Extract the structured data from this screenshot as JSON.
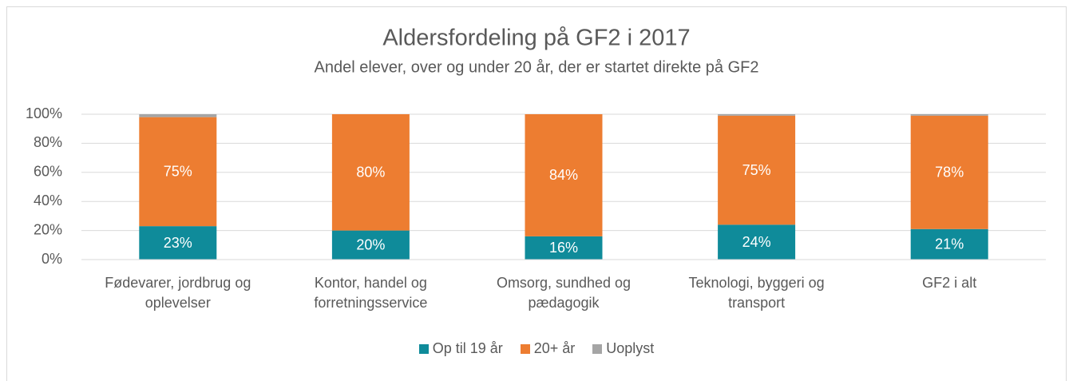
{
  "chart_data": {
    "type": "stacked_bar",
    "title": "Aldersfordeling på GF2 i 2017",
    "subtitle": "Andel elever, over og under 20 år, der er startet direkte på GF2",
    "categories": [
      "Fødevarer, jordbrug og oplevelser",
      "Kontor, handel og forretningsservice",
      "Omsorg, sundhed og pædagogik",
      "Teknologi, byggeri og transport",
      "GF2 i alt"
    ],
    "series": [
      {
        "name": "Op til 19 år",
        "color": "#0f8b9a",
        "values": [
          23,
          20,
          16,
          24,
          21
        ],
        "value_labels": [
          "23%",
          "20%",
          "16%",
          "24%",
          "21%"
        ]
      },
      {
        "name": "20+ år",
        "color": "#ed7d31",
        "values": [
          75,
          80,
          84,
          75,
          78
        ],
        "value_labels": [
          "75%",
          "80%",
          "84%",
          "75%",
          "78%"
        ]
      },
      {
        "name": "Uoplyst",
        "color": "#a5a5a5",
        "values": [
          2,
          0,
          0,
          1,
          1
        ]
      }
    ],
    "ylim": [
      0,
      100
    ],
    "yticks": [
      {
        "value": 0,
        "label": "0%"
      },
      {
        "value": 20,
        "label": "20%"
      },
      {
        "value": 40,
        "label": "40%"
      },
      {
        "value": 60,
        "label": "60%"
      },
      {
        "value": 80,
        "label": "80%"
      },
      {
        "value": 100,
        "label": "100%"
      }
    ],
    "grid": true,
    "legend": "bottom"
  }
}
